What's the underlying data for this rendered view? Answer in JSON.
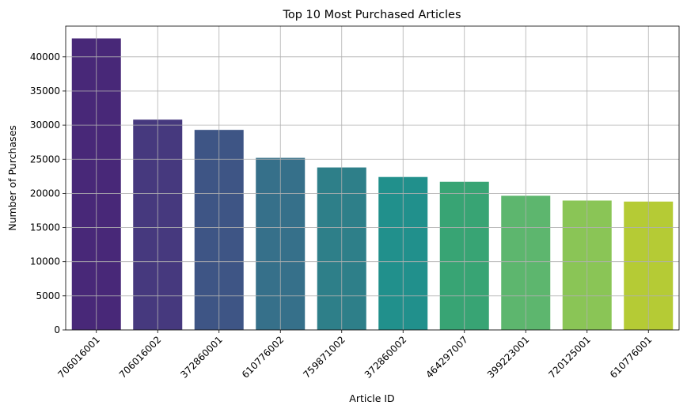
{
  "chart_data": {
    "type": "bar",
    "title": "Top 10 Most Purchased Articles",
    "xlabel": "Article ID",
    "ylabel": "Number of Purchases",
    "categories": [
      "706016001",
      "706016002",
      "372860001",
      "610776002",
      "759871002",
      "372860002",
      "464297007",
      "399223001",
      "720125001",
      "610776001"
    ],
    "values": [
      42700,
      30800,
      29300,
      25200,
      23800,
      22400,
      21700,
      19650,
      18950,
      18800
    ],
    "ylim": [
      0,
      44500
    ],
    "yticks": [
      0,
      5000,
      10000,
      15000,
      20000,
      25000,
      30000,
      35000,
      40000
    ],
    "ytick_labels": [
      "0",
      "5000",
      "10000",
      "15000",
      "20000",
      "25000",
      "30000",
      "35000",
      "40000"
    ],
    "colors": [
      "#482878",
      "#46397e",
      "#3e5585",
      "#36708a",
      "#2e7f89",
      "#21908c",
      "#38a474",
      "#5db66e",
      "#8ac556",
      "#b5cb35"
    ],
    "grid": true,
    "legend": "none",
    "xtick_rotation_deg": 45
  }
}
